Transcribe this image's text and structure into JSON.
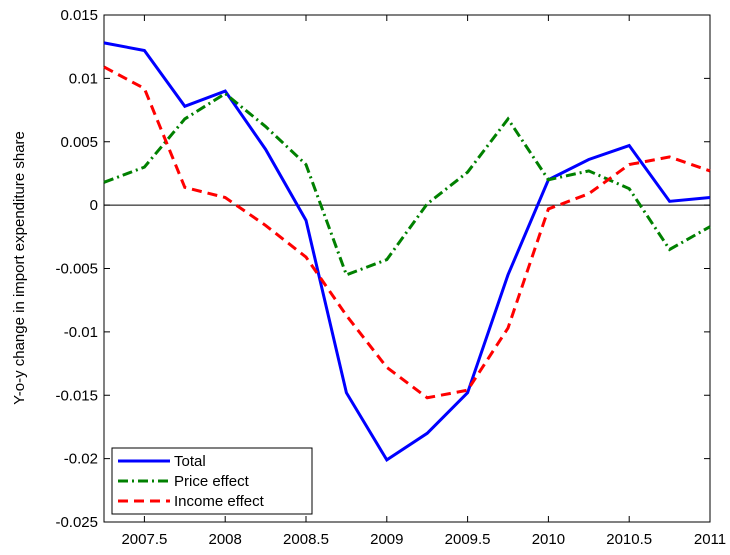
{
  "chart_data": {
    "type": "line",
    "ylabel": "Y-o-y change in import expenditure share",
    "x": [
      2007.25,
      2007.5,
      2007.75,
      2008,
      2008.25,
      2008.5,
      2008.75,
      2009,
      2009.25,
      2009.5,
      2009.75,
      2010,
      2010.25,
      2010.5,
      2010.75,
      2011
    ],
    "series": [
      {
        "name": "Total",
        "color": "#0000ff",
        "dash": "solid",
        "values": [
          0.0128,
          0.0122,
          0.0078,
          0.009,
          0.0044,
          -0.0012,
          -0.0148,
          -0.0201,
          -0.018,
          -0.0148,
          -0.0055,
          0.002,
          0.0036,
          0.0047,
          0.0003,
          0.0006
        ]
      },
      {
        "name": "Price effect",
        "color": "#008000",
        "dash": "dashdot",
        "values": [
          0.0018,
          0.003,
          0.0068,
          0.0088,
          0.0062,
          0.0032,
          -0.0055,
          -0.0043,
          0.0001,
          0.0026,
          0.0068,
          0.002,
          0.0027,
          0.0013,
          -0.0035,
          -0.0017
        ]
      },
      {
        "name": "Income effect",
        "color": "#ff0000",
        "dash": "dashed",
        "values": [
          0.0109,
          0.0092,
          0.0014,
          0.0006,
          -0.0016,
          -0.0041,
          -0.0087,
          -0.0128,
          -0.0152,
          -0.0146,
          -0.0097,
          -0.0003,
          0.0009,
          0.0032,
          0.0038,
          0.0027
        ]
      }
    ],
    "xlim": [
      2007.25,
      2011
    ],
    "xticks": [
      2007.5,
      2008,
      2008.5,
      2009,
      2009.5,
      2010,
      2010.5,
      2011
    ],
    "ylim": [
      -0.025,
      0.015
    ],
    "yticks": [
      -0.025,
      -0.02,
      -0.015,
      -0.01,
      -0.005,
      0,
      0.005,
      0.01,
      0.015
    ],
    "zero_line": true,
    "legend": "lower left"
  }
}
